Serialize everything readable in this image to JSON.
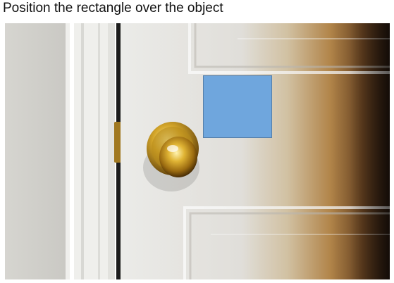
{
  "instruction": "Position the rectangle over the object",
  "scene": {
    "object": "door-knob",
    "rectangle_color": "#6fa6dd",
    "door_color": "#e9e9e6",
    "knob_color": "#c89a1a"
  }
}
